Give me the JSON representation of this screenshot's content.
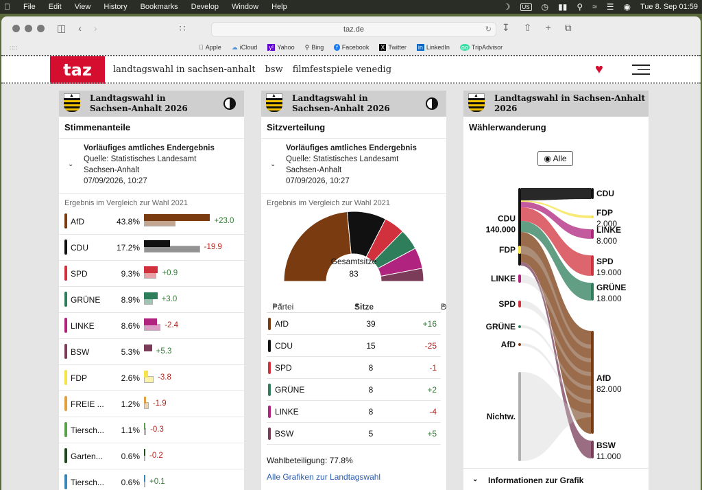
{
  "menubar": {
    "items": [
      "File",
      "Edit",
      "View",
      "History",
      "Bookmarks",
      "Develop",
      "Window",
      "Help"
    ],
    "input_source": "US",
    "datetime": "Tue 8. Sep  01:59"
  },
  "browser": {
    "url": "taz.de",
    "favorites": [
      {
        "label": "Apple",
        "icon": "apple-icon"
      },
      {
        "label": "iCloud",
        "icon": "cloud-icon"
      },
      {
        "label": "Yahoo",
        "icon": "yahoo-icon"
      },
      {
        "label": "Bing",
        "icon": "search-icon"
      },
      {
        "label": "Facebook",
        "icon": "facebook-icon"
      },
      {
        "label": "Twitter",
        "icon": "x-icon"
      },
      {
        "label": "LinkedIn",
        "icon": "linkedin-icon"
      },
      {
        "label": "TripAdvisor",
        "icon": "owl-icon"
      }
    ]
  },
  "site": {
    "logo": "taz",
    "nav": [
      "landtagswahl in sachsen-anhalt",
      "bsw",
      "filmfestspiele venedig"
    ],
    "brand_color": "#d50d2e"
  },
  "panel1": {
    "title": "Landtagswahl in Sachsen-Anhalt 2026",
    "subtitle": "Stimmenanteile",
    "info_bold": "Vorläufiges amtliches Endergebnis",
    "info_source": "Quelle: Statistisches Landesamt Sachsen-Anhalt",
    "info_date": "07/09/2026, 10:27",
    "compare": "Ergebnis im Vergleich zur Wahl 2021",
    "rows": [
      {
        "party": "AfD",
        "pct": "43.8%",
        "cur": 43.8,
        "prev": 20.8,
        "diff": "+23.0",
        "color": "#7a3b10"
      },
      {
        "party": "CDU",
        "pct": "17.2%",
        "cur": 17.2,
        "prev": 37.1,
        "diff": "-19.9",
        "color": "#111111"
      },
      {
        "party": "SPD",
        "pct": "9.3%",
        "cur": 9.3,
        "prev": 8.4,
        "diff": "+0.9",
        "color": "#d0313d"
      },
      {
        "party": "GRÜNE",
        "pct": "8.9%",
        "cur": 8.9,
        "prev": 5.9,
        "diff": "+3.0",
        "color": "#2e7d5b"
      },
      {
        "party": "LINKE",
        "pct": "8.6%",
        "cur": 8.6,
        "prev": 11.0,
        "diff": "-2.4",
        "color": "#b0237e"
      },
      {
        "party": "BSW",
        "pct": "5.3%",
        "cur": 5.3,
        "prev": 0,
        "diff": "+5.3",
        "color": "#7a3c58"
      },
      {
        "party": "FDP",
        "pct": "2.6%",
        "cur": 2.6,
        "prev": 6.4,
        "diff": "-3.8",
        "color": "#f6e34a"
      },
      {
        "party": "FREIE ...",
        "pct": "1.2%",
        "cur": 1.2,
        "prev": 3.1,
        "diff": "-1.9",
        "color": "#e0a040"
      },
      {
        "party": "Tiersch...",
        "pct": "1.1%",
        "cur": 1.1,
        "prev": 1.4,
        "diff": "-0.3",
        "color": "#5aa04a"
      },
      {
        "party": "Garten...",
        "pct": "0.6%",
        "cur": 0.6,
        "prev": 0.8,
        "diff": "-0.2",
        "color": "#1e4a1a"
      },
      {
        "party": "Tiersch...",
        "pct": "0.6%",
        "cur": 0.6,
        "prev": 0.5,
        "diff": "+0.1",
        "color": "#3a86b8"
      }
    ]
  },
  "panel2": {
    "title": "Landtagswahl in Sachsen-Anhalt 2026",
    "subtitle": "Sitzverteilung",
    "info_bold": "Vorläufiges amtliches Endergebnis",
    "info_source": "Quelle: Statistisches Landesamt Sachsen-Anhalt",
    "info_date": "07/09/2026, 10:27",
    "compare": "Ergebnis im Vergleich zur Wahl 2021",
    "total_label": "Gesamtsitze",
    "total": "83",
    "col_party": "Partei",
    "col_seats": "Sitze",
    "col_diff": "Diff",
    "rows": [
      {
        "party": "AfD",
        "seats": 39,
        "diff": "+16",
        "color": "#7a3b10"
      },
      {
        "party": "CDU",
        "seats": 15,
        "diff": "-25",
        "color": "#111111"
      },
      {
        "party": "SPD",
        "seats": 8,
        "diff": "-1",
        "color": "#d0313d"
      },
      {
        "party": "GRÜNE",
        "seats": 8,
        "diff": "+2",
        "color": "#2e7d5b"
      },
      {
        "party": "LINKE",
        "seats": 8,
        "diff": "-4",
        "color": "#b0237e"
      },
      {
        "party": "BSW",
        "seats": 5,
        "diff": "+5",
        "color": "#7a3c58"
      }
    ],
    "turnout": "Wahlbeteiligung: 77.8%",
    "link": "Alle Grafiken zur Landtagswahl"
  },
  "panel3": {
    "title": "Landtagswahl in Sachsen-Anhalt 2026",
    "subtitle": "Wählerwanderung",
    "filter_label": "Alle",
    "left_nodes": [
      {
        "label": "CDU",
        "value": "140.000"
      },
      {
        "label": "FDP",
        "value": ""
      },
      {
        "label": "LINKE",
        "value": ""
      },
      {
        "label": "SPD",
        "value": ""
      },
      {
        "label": "GRÜNE",
        "value": ""
      },
      {
        "label": "AfD",
        "value": ""
      },
      {
        "label": "Nichtw.",
        "value": ""
      }
    ],
    "right_nodes": [
      {
        "label": "CDU",
        "value": ""
      },
      {
        "label": "FDP",
        "value": "2.000"
      },
      {
        "label": "LINKE",
        "value": "8.000"
      },
      {
        "label": "SPD",
        "value": "19.000"
      },
      {
        "label": "GRÜNE",
        "value": "18.000"
      },
      {
        "label": "AfD",
        "value": "82.000"
      },
      {
        "label": "BSW",
        "value": "11.000"
      }
    ],
    "info_label": "Informationen zur Grafik"
  }
}
